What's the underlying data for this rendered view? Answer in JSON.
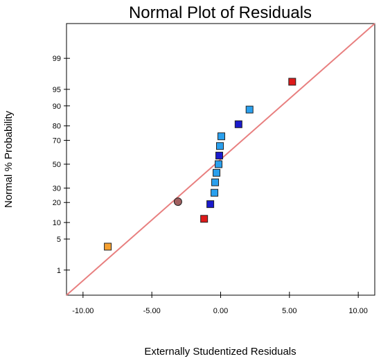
{
  "chart_data": {
    "type": "scatter",
    "title": "Normal Plot of Residuals",
    "xlabel": "Externally Studentized Residuals",
    "ylabel": "Normal % Probability",
    "xlim": [
      -11.2,
      11.2
    ],
    "ylim_probability": [
      0.2,
      99.9
    ],
    "y_scale": "normal-probability",
    "grid": false,
    "x_ticks": [
      {
        "value": -10,
        "label": "-10.00"
      },
      {
        "value": -5,
        "label": "-5.00"
      },
      {
        "value": 0,
        "label": "0.00"
      },
      {
        "value": 5,
        "label": "5.00"
      },
      {
        "value": 10,
        "label": "10.00"
      }
    ],
    "y_ticks": [
      {
        "value": 1,
        "label": "1"
      },
      {
        "value": 5,
        "label": "5"
      },
      {
        "value": 10,
        "label": "10"
      },
      {
        "value": 20,
        "label": "20"
      },
      {
        "value": 30,
        "label": "30"
      },
      {
        "value": 50,
        "label": "50"
      },
      {
        "value": 70,
        "label": "70"
      },
      {
        "value": 80,
        "label": "80"
      },
      {
        "value": 90,
        "label": "90"
      },
      {
        "value": 95,
        "label": "95"
      },
      {
        "value": 99,
        "label": "99"
      }
    ],
    "reference_line": {
      "color": "#e87f7f",
      "points": [
        {
          "x": -11.2,
          "y": 0.2
        },
        {
          "x": 11.2,
          "y": 99.9
        }
      ]
    },
    "points": [
      {
        "x": -8.2,
        "y": 3.5,
        "shape": "square",
        "color": "#f5a030"
      },
      {
        "x": -3.1,
        "y": 20.5,
        "shape": "circle",
        "color": "#a06060"
      },
      {
        "x": -1.2,
        "y": 11.5,
        "shape": "square",
        "color": "#dd1a1a"
      },
      {
        "x": -0.75,
        "y": 19.0,
        "shape": "square",
        "color": "#1a1acc"
      },
      {
        "x": -0.45,
        "y": 26.5,
        "shape": "square",
        "color": "#2aa0ee"
      },
      {
        "x": -0.4,
        "y": 34.5,
        "shape": "square",
        "color": "#2aa0ee"
      },
      {
        "x": -0.3,
        "y": 42.5,
        "shape": "square",
        "color": "#2aa0ee"
      },
      {
        "x": -0.15,
        "y": 50.0,
        "shape": "square",
        "color": "#2aa0ee"
      },
      {
        "x": -0.1,
        "y": 57.5,
        "shape": "square",
        "color": "#1a1acc"
      },
      {
        "x": -0.05,
        "y": 65.5,
        "shape": "square",
        "color": "#2aa0ee"
      },
      {
        "x": 0.05,
        "y": 73.0,
        "shape": "square",
        "color": "#2aa0ee"
      },
      {
        "x": 1.3,
        "y": 81.0,
        "shape": "square",
        "color": "#1a1acc"
      },
      {
        "x": 2.1,
        "y": 88.5,
        "shape": "square",
        "color": "#2aa0ee"
      },
      {
        "x": 5.2,
        "y": 96.5,
        "shape": "square",
        "color": "#dd1a1a"
      }
    ]
  }
}
